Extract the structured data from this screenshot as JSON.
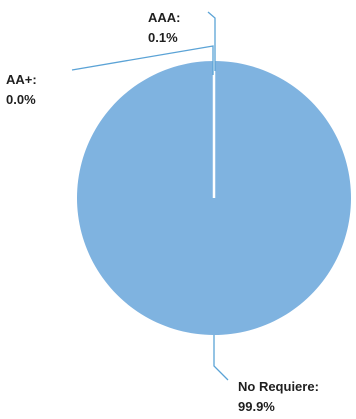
{
  "chart_data": {
    "type": "pie",
    "title": "",
    "categories": [
      "AAA:",
      "AA+:",
      "No Requiere:"
    ],
    "values": [
      0.1,
      0.0,
      99.9
    ],
    "value_labels": [
      "0.1%",
      "0.0%",
      "99.9%"
    ],
    "colors": [
      "#7fb3e0",
      "#7fb3e0",
      "#7fb3e0"
    ],
    "slice_border_color": "#ffffff",
    "leader_line_color": "#5ba3d6",
    "legend": "none",
    "data_labels": "outside-with-leader-lines"
  }
}
